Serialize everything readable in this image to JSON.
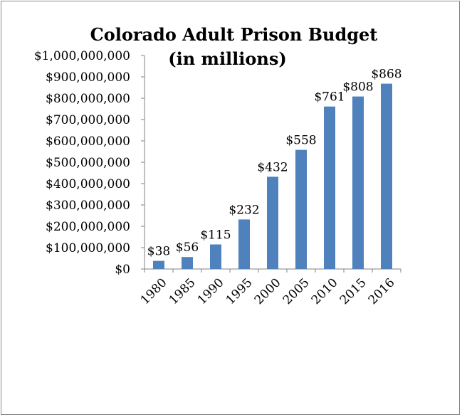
{
  "chart_data": {
    "type": "bar",
    "title": "Colorado Adult Prison Budget",
    "subtitle": "(in millions)",
    "categories": [
      "1980",
      "1985",
      "1990",
      "1995",
      "2000",
      "2005",
      "2010",
      "2015",
      "2016"
    ],
    "values": [
      38000000,
      56000000,
      115000000,
      232000000,
      432000000,
      558000000,
      761000000,
      808000000,
      868000000
    ],
    "data_labels": [
      "$38",
      "$56",
      "$115",
      "$232",
      "$432",
      "$558",
      "$761",
      "$808",
      "$868"
    ],
    "y_ticks": [
      "$0",
      "$100,000,000",
      "$200,000,000",
      "$300,000,000",
      "$400,000,000",
      "$500,000,000",
      "$600,000,000",
      "$700,000,000",
      "$800,000,000",
      "$900,000,000",
      "$1,000,000,000"
    ],
    "ylim": [
      0,
      1000000000
    ],
    "grid": false,
    "legend": "none",
    "bar_color": "#4f81bd"
  }
}
